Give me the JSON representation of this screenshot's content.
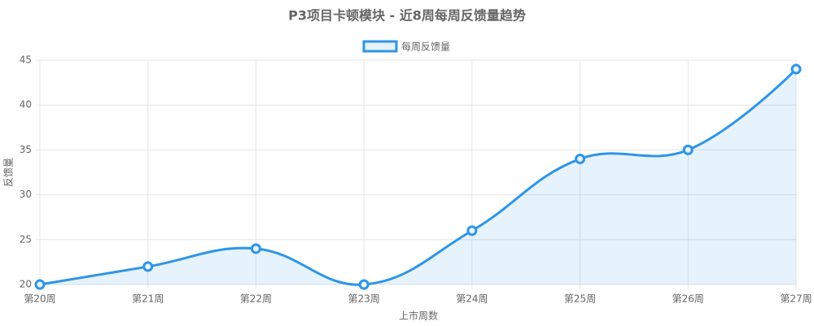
{
  "chart_data": {
    "type": "line",
    "title": "P3项目卡顿模块 - 近8周每周反馈量趋势",
    "x_label": "上市周数",
    "y_label": "反馈量",
    "categories": [
      "第20周",
      "第21周",
      "第22周",
      "第23周",
      "第24周",
      "第25周",
      "第26周",
      "第27周"
    ],
    "series": [
      {
        "name": "每周反馈量",
        "color": "#2e95e8",
        "values": [
          20,
          22,
          24,
          20,
          26,
          34,
          35,
          44
        ]
      }
    ],
    "ylim": [
      20,
      45
    ],
    "yticks": [
      20,
      25,
      30,
      35,
      40,
      45
    ],
    "grid": true,
    "fill": true,
    "legend": "top"
  }
}
